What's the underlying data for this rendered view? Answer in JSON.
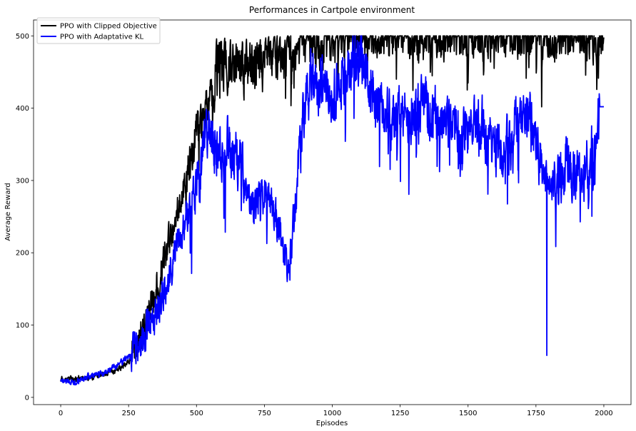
{
  "chart_data": {
    "type": "line",
    "title": "Performances in Cartpole environment",
    "xlabel": "Episodes",
    "ylabel": "Average Reward",
    "xlim": [
      -100,
      2100
    ],
    "ylim": [
      -10,
      522
    ],
    "xticks": [
      0,
      250,
      500,
      750,
      1000,
      1250,
      1500,
      1750,
      2000
    ],
    "yticks": [
      0,
      100,
      200,
      300,
      400,
      500
    ],
    "grid": false,
    "legend_position": "top-left",
    "x_range": [
      0,
      2000
    ],
    "series": [
      {
        "name": "PPO with Clipped Objective",
        "color": "#000000",
        "trend": [
          [
            0,
            25
          ],
          [
            100,
            27
          ],
          [
            200,
            35
          ],
          [
            250,
            50
          ],
          [
            300,
            90
          ],
          [
            350,
            150
          ],
          [
            400,
            215
          ],
          [
            450,
            290
          ],
          [
            500,
            360
          ],
          [
            550,
            410
          ],
          [
            600,
            440
          ],
          [
            650,
            445
          ],
          [
            700,
            440
          ],
          [
            750,
            455
          ],
          [
            800,
            465
          ],
          [
            900,
            480
          ],
          [
            1000,
            490
          ],
          [
            1200,
            495
          ],
          [
            1400,
            495
          ],
          [
            1600,
            497
          ],
          [
            1800,
            498
          ],
          [
            2000,
            497
          ]
        ]
      },
      {
        "name": "PPO with Adaptative KL",
        "color": "#0000ff",
        "trend": [
          [
            0,
            22
          ],
          [
            50,
            22
          ],
          [
            100,
            28
          ],
          [
            150,
            32
          ],
          [
            200,
            42
          ],
          [
            250,
            55
          ],
          [
            300,
            80
          ],
          [
            350,
            110
          ],
          [
            400,
            170
          ],
          [
            450,
            235
          ],
          [
            500,
            295
          ],
          [
            540,
            370
          ],
          [
            580,
            340
          ],
          [
            620,
            345
          ],
          [
            660,
            330
          ],
          [
            700,
            260
          ],
          [
            750,
            290
          ],
          [
            800,
            235
          ],
          [
            840,
            170
          ],
          [
            870,
            300
          ],
          [
            900,
            420
          ],
          [
            950,
            425
          ],
          [
            1000,
            410
          ],
          [
            1050,
            455
          ],
          [
            1100,
            480
          ],
          [
            1150,
            420
          ],
          [
            1200,
            380
          ],
          [
            1250,
            400
          ],
          [
            1300,
            390
          ],
          [
            1350,
            410
          ],
          [
            1400,
            380
          ],
          [
            1450,
            385
          ],
          [
            1500,
            360
          ],
          [
            1550,
            375
          ],
          [
            1600,
            345
          ],
          [
            1650,
            355
          ],
          [
            1700,
            400
          ],
          [
            1750,
            360
          ],
          [
            1780,
            295
          ],
          [
            1820,
            300
          ],
          [
            1860,
            330
          ],
          [
            1900,
            305
          ],
          [
            1920,
            295
          ],
          [
            1950,
            330
          ],
          [
            1990,
            400
          ],
          [
            2000,
            402
          ]
        ]
      }
    ]
  }
}
